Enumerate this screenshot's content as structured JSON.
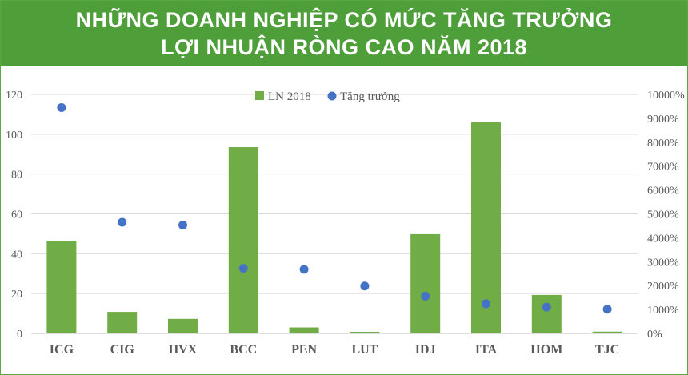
{
  "header": {
    "title_line1": "NHỮNG DOANH NGHIỆP CÓ MỨC TĂNG TRƯỞNG",
    "title_line2": "LỢI NHUẬN RÒNG CAO NĂM 2018",
    "background_color": "#4e9e3a",
    "text_color": "#ffffff"
  },
  "chart_data": {
    "type": "bar",
    "title": "NHỮNG DOANH NGHIỆP CÓ MỨC TĂNG TRƯỞNG LỢI NHUẬN RÒNG CAO NĂM 2018",
    "categories": [
      "ICG",
      "CIG",
      "HVX",
      "BCC",
      "PEN",
      "LUT",
      "IDJ",
      "ITA",
      "HOM",
      "TJC"
    ],
    "series": [
      {
        "name": "LN 2018",
        "type": "bar",
        "axis": "left",
        "color": "#70ad47",
        "values": [
          46.5,
          10.8,
          7.3,
          93.5,
          3.0,
          0.8,
          49.8,
          106.2,
          19.3,
          0.9
        ]
      },
      {
        "name": "Tăng trưởng",
        "type": "scatter",
        "axis": "right",
        "unit": "%",
        "color": "#4472c4",
        "values": [
          9450,
          4650,
          4530,
          2720,
          2680,
          1980,
          1560,
          1240,
          1100,
          1010
        ]
      }
    ],
    "left_axis": {
      "min": 0,
      "max": 120,
      "ticks": [
        0,
        20,
        40,
        60,
        80,
        100,
        120
      ]
    },
    "right_axis": {
      "min": 0,
      "max": 10000,
      "ticks": [
        "0%",
        "1000%",
        "2000%",
        "3000%",
        "4000%",
        "5000%",
        "6000%",
        "7000%",
        "8000%",
        "9000%",
        "10000%"
      ]
    },
    "grid": true,
    "legend_position": "top"
  }
}
